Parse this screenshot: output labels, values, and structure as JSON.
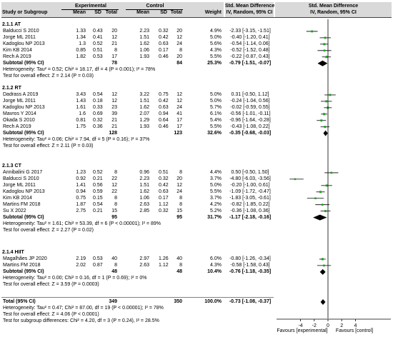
{
  "header": {
    "experimental": "Experimental",
    "control": "Control",
    "smd1": "Std. Mean Difference",
    "smd1_sub": "IV, Random, 95% CI",
    "smd2": "Std. Mean Difference",
    "smd2_sub": "IV, Random, 95% CI",
    "study": "Study or Subgroup",
    "mean_e": "Mean",
    "sd_e": "SD",
    "total_e": "Total",
    "mean_c": "Mean",
    "sd_c": "SD",
    "total_c": "Total",
    "weight": "Weight"
  },
  "groups": [
    {
      "title": "2.1.1 AT",
      "studies": [
        {
          "name": "Balducci S 2010",
          "me": "1.33",
          "sde": "0.43",
          "te": "20",
          "mc": "2.23",
          "sdc": "0.32",
          "tc": "20",
          "w": "4.9%",
          "ci": "-2.33 [-3.15, -1.51]"
        },
        {
          "name": "Jorge ML 2011",
          "me": "1.34",
          "sde": "0.41",
          "te": "12",
          "mc": "1.51",
          "sdc": "0.42",
          "tc": "12",
          "w": "5.0%",
          "ci": "-0.40 [-1.20, 0.41]"
        },
        {
          "name": "Kadoglou NP 2013",
          "me": "1.3",
          "sde": "0.52",
          "te": "21",
          "mc": "1.62",
          "sdc": "0.63",
          "tc": "24",
          "w": "5.6%",
          "ci": "-0.54 [-1.14, 0.06]"
        },
        {
          "name": "Kim KB 2014",
          "me": "0.85",
          "sde": "0.51",
          "te": "8",
          "mc": "1.06",
          "sdc": "0.17",
          "tc": "8",
          "w": "4.3%",
          "ci": "-0.52 [-1.52, 0.48]"
        },
        {
          "name": "Rech A 2019",
          "me": "1.82",
          "sde": "0.53",
          "te": "17",
          "mc": "1.93",
          "sdc": "0.46",
          "tc": "20",
          "w": "5.5%",
          "ci": "-0.22 [-0.87, 0.43]"
        }
      ],
      "subtotal": {
        "label": "Subtotal (95% CI)",
        "te": "78",
        "tc": "84",
        "w": "25.3%",
        "ci": "-0.79 [-1.51, -0.07]"
      },
      "heterogeneity": "Heterogeneity: Tau² = 0.52; Chi² = 18.17, df = 4 (P = 0.001); I² = 78%",
      "overall": "Test for overall effect: Z = 2.14 (P = 0.03)"
    },
    {
      "title": "2.1.2 RT",
      "studies": [
        {
          "name": "Dadrass A 2019",
          "me": "3.43",
          "sde": "0.54",
          "te": "12",
          "mc": "3.22",
          "sdc": "0.75",
          "tc": "12",
          "w": "5.0%",
          "ci": "0.31 [-0.50, 1.12]"
        },
        {
          "name": "Jorge ML 2011",
          "me": "1.43",
          "sde": "0.18",
          "te": "12",
          "mc": "1.51",
          "sdc": "0.42",
          "tc": "12",
          "w": "5.0%",
          "ci": "-0.24 [-1.04, 0.56]"
        },
        {
          "name": "Kadoglou NP 2013",
          "me": "1.61",
          "sde": "0.33",
          "te": "23",
          "mc": "1.62",
          "sdc": "0.63",
          "tc": "24",
          "w": "5.7%",
          "ci": "-0.02 [-0.59, 0.55]"
        },
        {
          "name": "Mavros Y 2014",
          "me": "1.6",
          "sde": "0.69",
          "te": "39",
          "mc": "2.07",
          "sdc": "0.94",
          "tc": "41",
          "w": "6.1%",
          "ci": "-0.56 [-1.01, -0.11]"
        },
        {
          "name": "Okada S 2010",
          "me": "0.81",
          "sde": "0.32",
          "te": "21",
          "mc": "1.29",
          "sdc": "0.64",
          "tc": "17",
          "w": "5.4%",
          "ci": "-0.96 [-1.64, -0.28]"
        },
        {
          "name": "Rech A 2019",
          "me": "1.75",
          "sde": "0.36",
          "te": "21",
          "mc": "1.93",
          "sdc": "0.46",
          "tc": "17",
          "w": "5.5%",
          "ci": "-0.43 [-1.08, 0.22]"
        }
      ],
      "subtotal": {
        "label": "Subtotal (95% CI)",
        "te": "128",
        "tc": "123",
        "w": "32.6%",
        "ci": "-0.35 [-0.68, -0.03]"
      },
      "heterogeneity": "Heterogeneity: Tau² = 0.06; Chi² = 7.94, df = 5 (P = 0.16); I² = 37%",
      "overall": "Test for overall effect: Z = 2.11 (P = 0.03)"
    },
    {
      "title": "2.1.3 CT",
      "studies": [
        {
          "name": "Annibalini G 2017",
          "me": "1.23",
          "sde": "0.52",
          "te": "8",
          "mc": "0.96",
          "sdc": "0.51",
          "tc": "8",
          "w": "4.4%",
          "ci": "0.50 [-0.50, 1.50]"
        },
        {
          "name": "Balducci S 2010",
          "me": "0.92",
          "sde": "0.21",
          "te": "22",
          "mc": "2.23",
          "sdc": "0.32",
          "tc": "20",
          "w": "3.7%",
          "ci": "-4.80 [-6.03, -3.56]"
        },
        {
          "name": "Jorge ML 2011",
          "me": "1.41",
          "sde": "0.56",
          "te": "12",
          "mc": "1.51",
          "sdc": "0.42",
          "tc": "12",
          "w": "5.0%",
          "ci": "-0.20 [-1.00, 0.61]"
        },
        {
          "name": "Kadoglou NP 2013",
          "me": "0.94",
          "sde": "0.59",
          "te": "22",
          "mc": "1.62",
          "sdc": "0.63",
          "tc": "24",
          "w": "5.5%",
          "ci": "-1.09 [-1.72, -0.47]"
        },
        {
          "name": "Kim KB 2014",
          "me": "0.75",
          "sde": "0.15",
          "te": "8",
          "mc": "1.06",
          "sdc": "0.17",
          "tc": "8",
          "w": "3.7%",
          "ci": "-1.83 [-3.05, -0.61]"
        },
        {
          "name": "Martins FM 2018",
          "me": "1.87",
          "sde": "0.54",
          "te": "8",
          "mc": "2.63",
          "sdc": "1.12",
          "tc": "8",
          "w": "4.2%",
          "ci": "-0.82 [-1.85, 0.22]"
        },
        {
          "name": "Su X 2022",
          "me": "2.75",
          "sde": "0.21",
          "te": "15",
          "mc": "2.85",
          "sdc": "0.32",
          "tc": "15",
          "w": "5.2%",
          "ci": "-0.36 [-1.08, 0.36]"
        }
      ],
      "subtotal": {
        "label": "Subtotal (95% CI)",
        "te": "95",
        "tc": "95",
        "w": "31.7%",
        "ci": "-1.17 [-2.18, -0.16]"
      },
      "heterogeneity": "Heterogeneity: Tau² = 1.61; Chi² = 53.39, df = 6 (P < 0.00001); I² = 89%",
      "overall": "Test for overall effect: Z = 2.27 (P = 0.02)"
    },
    {
      "title": "2.1.4 HIIT",
      "studies": [
        {
          "name": "Magalhães JP 2020",
          "me": "2.19",
          "sde": "0.53",
          "te": "40",
          "mc": "2.97",
          "sdc": "1.26",
          "tc": "40",
          "w": "6.0%",
          "ci": "-0.80 [-1.26, -0.34]"
        },
        {
          "name": "Martins FM 2018",
          "me": "2.02",
          "sde": "0.87",
          "te": "8",
          "mc": "2.63",
          "sdc": "1.12",
          "tc": "8",
          "w": "4.3%",
          "ci": "-0.58 [-1.58, 0.43]"
        }
      ],
      "subtotal": {
        "label": "Subtotal (95% CI)",
        "te": "48",
        "tc": "48",
        "w": "10.4%",
        "ci": "-0.76 [-1.18, -0.35]"
      },
      "heterogeneity": "Heterogeneity: Tau² = 0.00; Chi² = 0.16, df = 1 (P = 0.69); I² = 0%",
      "overall": "Test for overall effect: Z = 3.59 (P = 0.0003)"
    }
  ],
  "total": {
    "label": "Total (95% CI)",
    "te": "349",
    "tc": "350",
    "w": "100.0%",
    "ci": "-0.73 [-1.08, -0.37]"
  },
  "footer": {
    "heterogeneity": "Heterogeneity: Tau² = 0.47; Chi² = 87.00, df = 19 (P < 0.00001); I² = 78%",
    "overall": "Test for overall effect: Z = 4.06 (P < 0.0001)",
    "subgroup": "Test for subgroup differences: Chi² = 4.20, df = 3 (P = 0.24), I² = 28.5%"
  },
  "axis": {
    "favours_left": "Favours [experimental]",
    "favours_right": "Favours [control]"
  },
  "colors": {
    "marker": "#1aa31a",
    "header_bg": "#d9d9d9",
    "diamond": "#000000"
  },
  "chart_data": {
    "type": "forest",
    "x_domain": [
      -5,
      5
    ],
    "x_ticks": [
      -4,
      -2,
      0,
      2,
      4
    ],
    "subgroups": [
      {
        "name": "2.1.1 AT",
        "smd": [
          -2.33,
          -0.4,
          -0.54,
          -0.52,
          -0.22
        ],
        "lo": [
          -3.15,
          -1.2,
          -1.14,
          -1.52,
          -0.87
        ],
        "hi": [
          -1.51,
          0.41,
          0.06,
          0.48,
          0.43
        ],
        "weight": [
          4.9,
          5.0,
          5.6,
          4.3,
          5.5
        ],
        "pooled": [
          -0.79,
          -1.51,
          -0.07
        ]
      },
      {
        "name": "2.1.2 RT",
        "smd": [
          0.31,
          -0.24,
          -0.02,
          -0.56,
          -0.96,
          -0.43
        ],
        "lo": [
          -0.5,
          -1.04,
          -0.59,
          -1.01,
          -1.64,
          -1.08
        ],
        "hi": [
          1.12,
          0.56,
          0.55,
          -0.11,
          -0.28,
          0.22
        ],
        "weight": [
          5.0,
          5.0,
          5.7,
          6.1,
          5.4,
          5.5
        ],
        "pooled": [
          -0.35,
          -0.68,
          -0.03
        ]
      },
      {
        "name": "2.1.3 CT",
        "smd": [
          0.5,
          -4.8,
          -0.2,
          -1.09,
          -1.83,
          -0.82,
          -0.36
        ],
        "lo": [
          -0.5,
          -6.03,
          -1.0,
          -1.72,
          -3.05,
          -1.85,
          -1.08
        ],
        "hi": [
          1.5,
          -3.56,
          0.61,
          -0.47,
          -0.61,
          0.22,
          0.36
        ],
        "weight": [
          4.4,
          3.7,
          5.0,
          5.5,
          3.7,
          4.2,
          5.2
        ],
        "pooled": [
          -1.17,
          -2.18,
          -0.16
        ]
      },
      {
        "name": "2.1.4 HIIT",
        "smd": [
          -0.8,
          -0.58
        ],
        "lo": [
          -1.26,
          -1.58
        ],
        "hi": [
          -0.34,
          0.43
        ],
        "weight": [
          6.0,
          4.3
        ],
        "pooled": [
          -0.76,
          -1.18,
          -0.35
        ]
      }
    ],
    "overall": [
      -0.73,
      -1.08,
      -0.37
    ]
  }
}
